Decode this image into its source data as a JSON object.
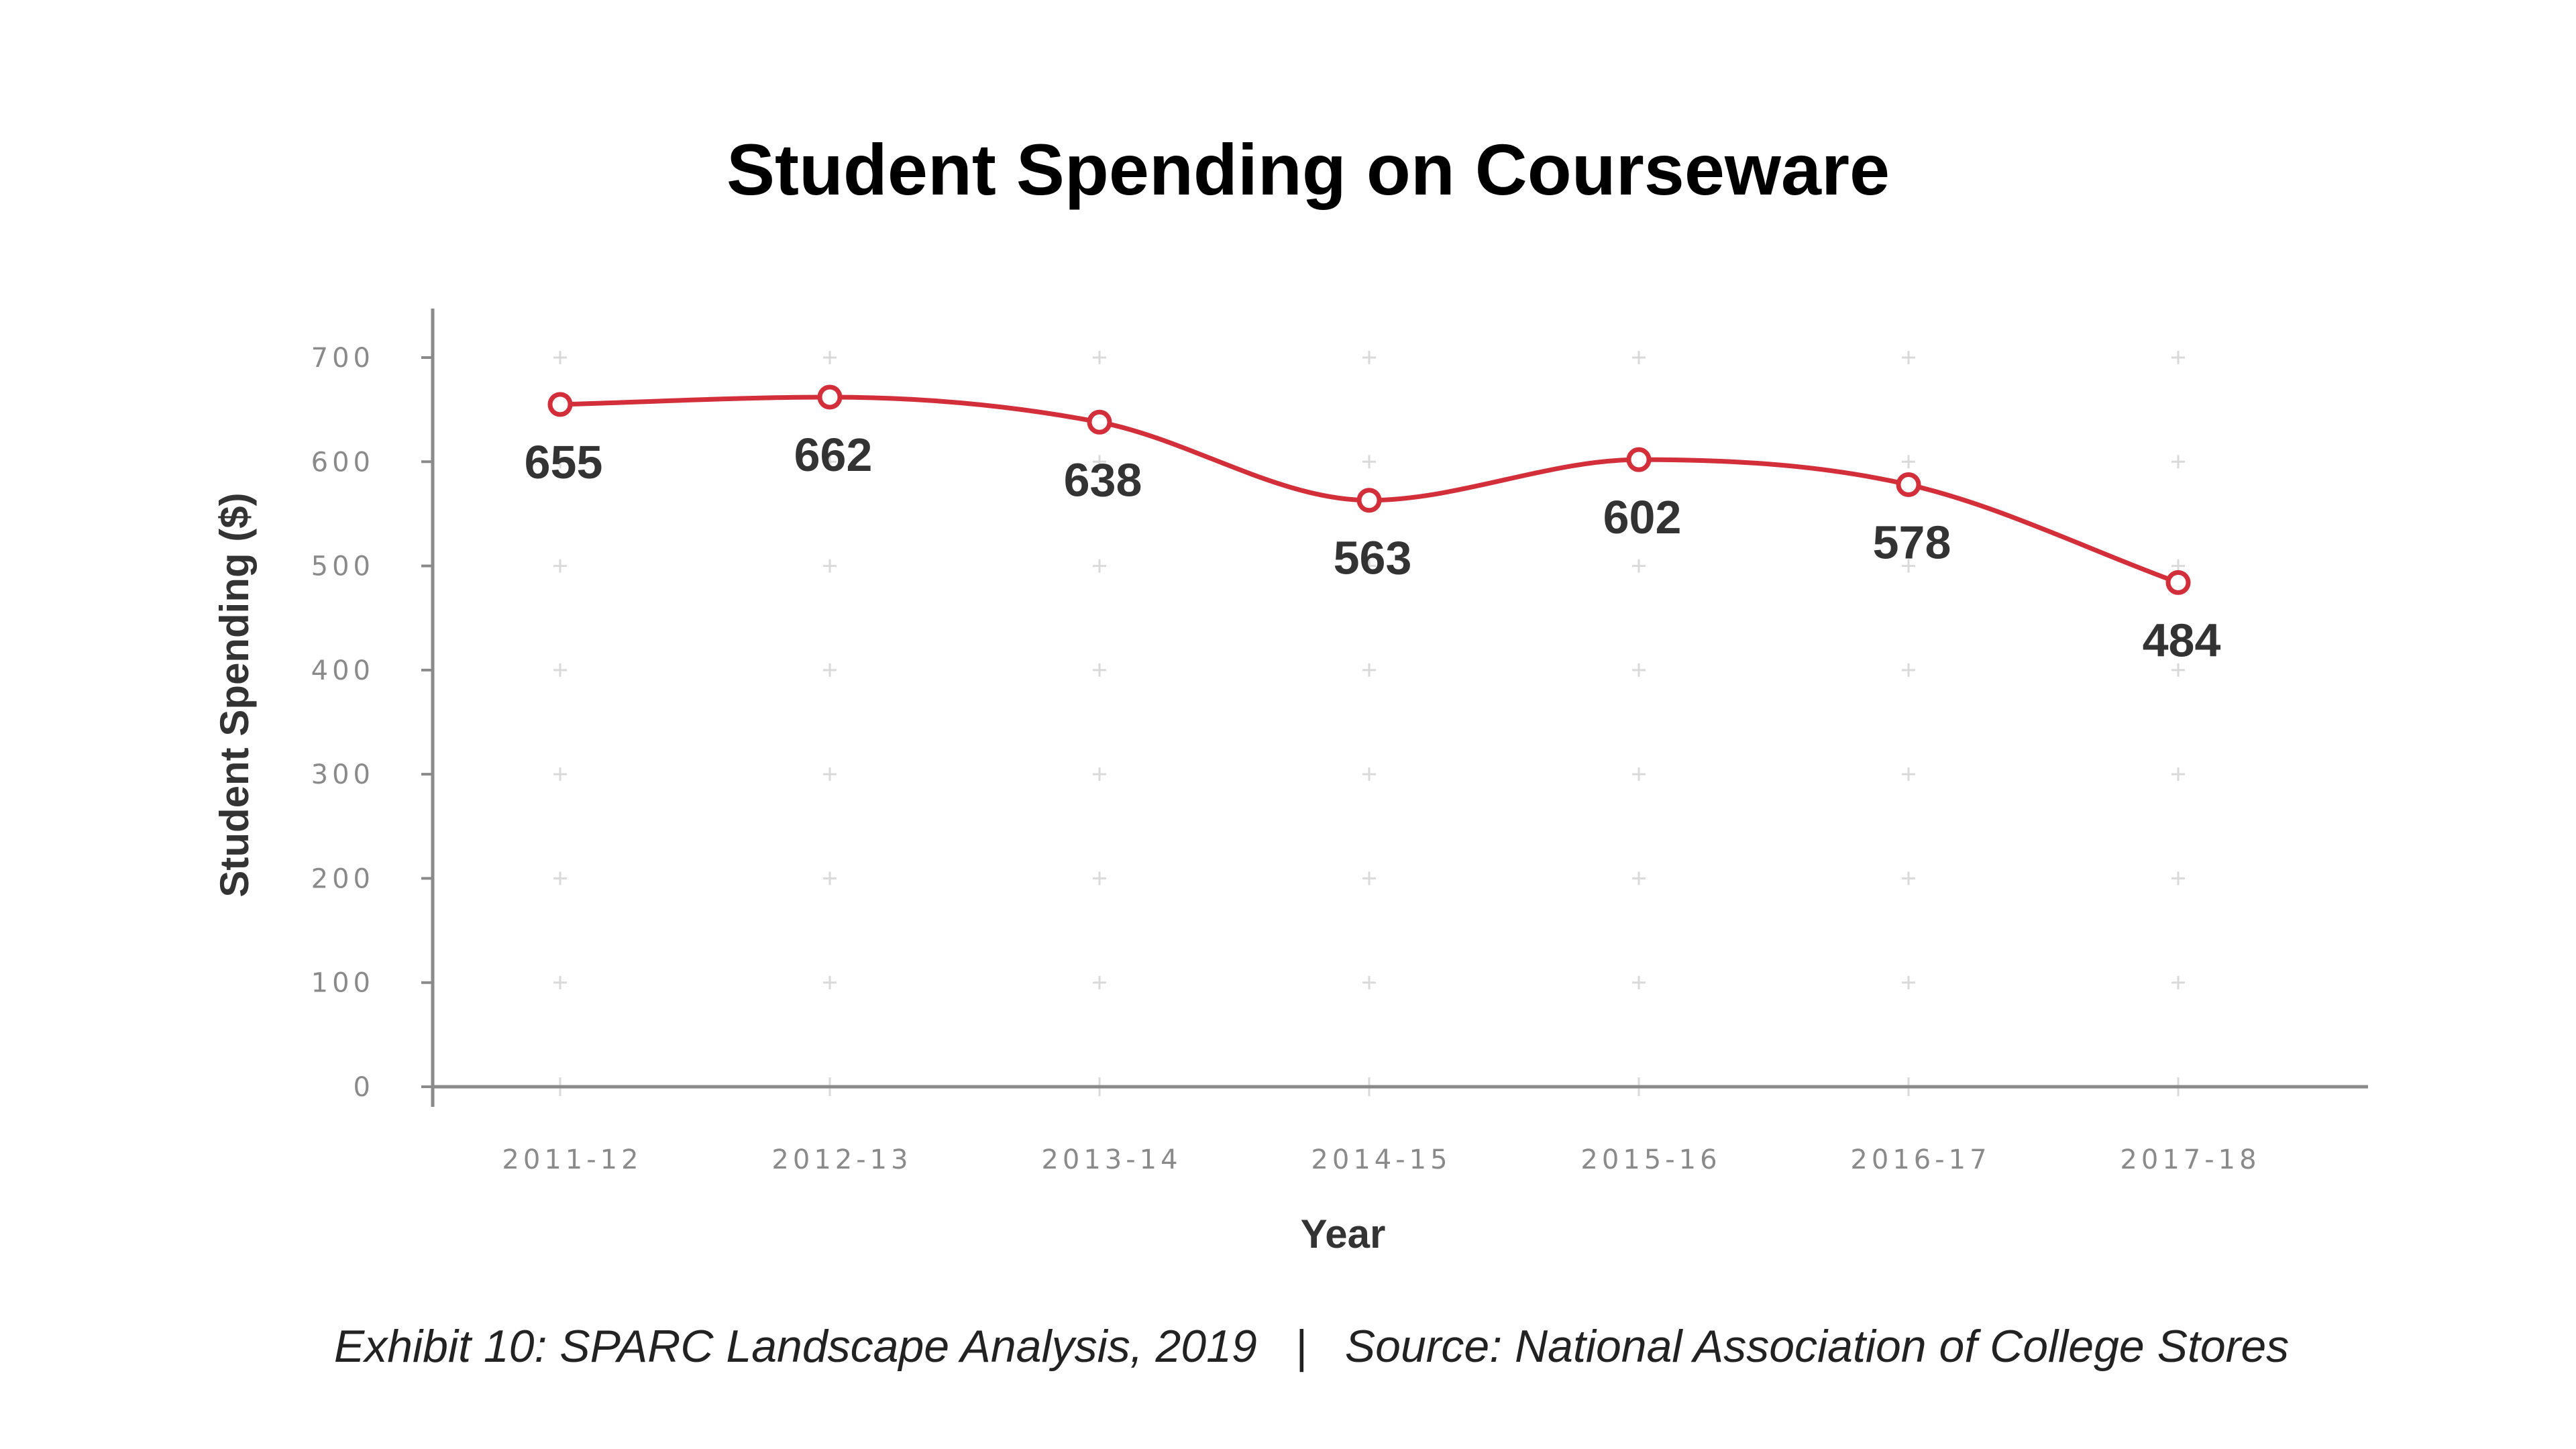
{
  "colors": {
    "series": "#d32f3a",
    "axis": "#8a8a8a",
    "grid": "#d9d9d9",
    "text": "#333333"
  },
  "caption": "Exhibit 10: SPARC Landscape Analysis, 2019   |   Source: National Association of College Stores",
  "chart_data": {
    "type": "line",
    "title": "Student Spending on Courseware",
    "xlabel": "Year",
    "ylabel": "Student Spending ($)",
    "categories": [
      "2011-12",
      "2012-13",
      "2013-14",
      "2014-15",
      "2015-16",
      "2016-17",
      "2017-18"
    ],
    "series": [
      {
        "values": [
          655,
          662,
          638,
          563,
          602,
          578,
          484
        ],
        "data_labels": [
          "655",
          "662",
          "638",
          "563",
          "602",
          "578",
          "484"
        ]
      }
    ],
    "ylim": [
      0,
      700
    ],
    "yticks": [
      0,
      100,
      200,
      300,
      400,
      500,
      600,
      700
    ],
    "ytick_labels": [
      "0",
      "100",
      "200",
      "300",
      "400",
      "500",
      "600",
      "700"
    ],
    "grid": "plus-markers",
    "legend": "none",
    "smooth": true
  }
}
